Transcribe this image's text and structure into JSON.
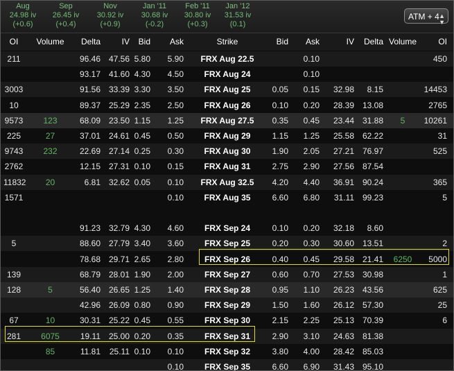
{
  "expirations": [
    {
      "name": "Aug",
      "iv": "24.98 iv",
      "chg": "(+0.6)"
    },
    {
      "name": "Sep",
      "iv": "26.45 iv",
      "chg": "(+0.4)"
    },
    {
      "name": "Nov",
      "iv": "30.92 iv",
      "chg": "(+0.9)"
    },
    {
      "name": "Jan '11",
      "iv": "30.68 iv",
      "chg": "(-0.2)"
    },
    {
      "name": "Feb '11",
      "iv": "30.80 iv",
      "chg": "(+0.3)"
    },
    {
      "name": "Jan '12",
      "iv": "31.53 iv",
      "chg": "(0.1)"
    }
  ],
  "atm_selector": {
    "label": "ATM + 4"
  },
  "headers": [
    "OI",
    "Volume",
    "Delta",
    "IV",
    "Bid",
    "Ask",
    "Strike",
    "Bid",
    "Ask",
    "IV",
    "Delta",
    "Volume",
    "OI"
  ],
  "rows": [
    [
      "211",
      "",
      "96.46",
      "47.56",
      "5.80",
      "5.90",
      "FRX Aug 22.5",
      "",
      "0.10",
      "",
      "",
      "",
      "450"
    ],
    [
      "",
      "",
      "93.17",
      "41.60",
      "4.30",
      "4.50",
      "FRX Aug 24",
      "",
      "0.10",
      "",
      "",
      "",
      ""
    ],
    [
      "3003",
      "",
      "91.56",
      "33.39",
      "3.30",
      "3.50",
      "FRX Aug 25",
      "0.05",
      "0.15",
      "32.98",
      "8.15",
      "",
      "14453"
    ],
    [
      "10",
      "",
      "89.37",
      "25.29",
      "2.35",
      "2.50",
      "FRX Aug 26",
      "0.10",
      "0.20",
      "28.39",
      "13.08",
      "",
      "2765"
    ],
    [
      "9573",
      "123",
      "68.09",
      "23.50",
      "1.15",
      "1.25",
      "FRX Aug 27.5",
      "0.35",
      "0.45",
      "23.44",
      "31.88",
      "5",
      "10261"
    ],
    [
      "225",
      "27",
      "37.01",
      "24.61",
      "0.45",
      "0.50",
      "FRX Aug 29",
      "1.15",
      "1.25",
      "25.58",
      "62.22",
      "",
      "31"
    ],
    [
      "9743",
      "232",
      "22.69",
      "27.14",
      "0.25",
      "0.30",
      "FRX Aug 30",
      "1.90",
      "2.05",
      "27.21",
      "76.97",
      "",
      "525"
    ],
    [
      "2762",
      "",
      "12.15",
      "27.31",
      "0.10",
      "0.15",
      "FRX Aug 31",
      "2.75",
      "2.90",
      "27.56",
      "87.54",
      "",
      ""
    ],
    [
      "11832",
      "20",
      "6.81",
      "32.62",
      "0.05",
      "0.10",
      "FRX Aug 32.5",
      "4.20",
      "4.40",
      "36.91",
      "90.24",
      "",
      "365"
    ],
    [
      "1571",
      "",
      "",
      "",
      "",
      "0.10",
      "FRX Aug 35",
      "6.60",
      "6.80",
      "31.11",
      "99.23",
      "",
      "5"
    ],
    [
      "",
      "",
      "",
      "",
      "",
      "",
      "",
      "",
      "",
      "",
      "",
      "",
      ""
    ],
    [
      "",
      "",
      "91.23",
      "32.79",
      "4.30",
      "4.60",
      "FRX Sep 24",
      "0.10",
      "0.20",
      "32.18",
      "8.60",
      "",
      ""
    ],
    [
      "5",
      "",
      "88.60",
      "27.79",
      "3.40",
      "3.60",
      "FRX Sep 25",
      "0.20",
      "0.30",
      "30.60",
      "13.51",
      "",
      "2"
    ],
    [
      "",
      "",
      "78.68",
      "29.71",
      "2.65",
      "2.80",
      "FRX Sep 26",
      "0.40",
      "0.45",
      "29.58",
      "21.41",
      "6250",
      "5000"
    ],
    [
      "139",
      "",
      "68.79",
      "28.01",
      "1.90",
      "2.00",
      "FRX Sep 27",
      "0.60",
      "0.70",
      "27.53",
      "30.98",
      "",
      "1"
    ],
    [
      "128",
      "5",
      "56.40",
      "26.65",
      "1.25",
      "1.40",
      "FRX Sep 28",
      "0.95",
      "1.10",
      "26.23",
      "43.56",
      "",
      "625"
    ],
    [
      "",
      "",
      "42.96",
      "26.09",
      "0.80",
      "0.90",
      "FRX Sep 29",
      "1.50",
      "1.60",
      "26.12",
      "57.30",
      "",
      "25"
    ],
    [
      "67",
      "10",
      "30.31",
      "25.22",
      "0.45",
      "0.55",
      "FRX Sep 30",
      "2.15",
      "2.25",
      "25.13",
      "70.39",
      "",
      "6"
    ],
    [
      "281",
      "6075",
      "19.11",
      "25.00",
      "0.20",
      "0.35",
      "FRX Sep 31",
      "2.90",
      "3.10",
      "24.63",
      "81.38",
      "",
      ""
    ],
    [
      "",
      "85",
      "11.81",
      "25.11",
      "0.10",
      "0.10",
      "FRX Sep 32",
      "3.80",
      "4.00",
      "28.42",
      "85.03",
      "",
      ""
    ],
    [
      "",
      "",
      "",
      "",
      "",
      "0.10",
      "FRX Sep 35",
      "6.60",
      "6.90",
      "31.43",
      "95.10",
      "",
      ""
    ]
  ]
}
